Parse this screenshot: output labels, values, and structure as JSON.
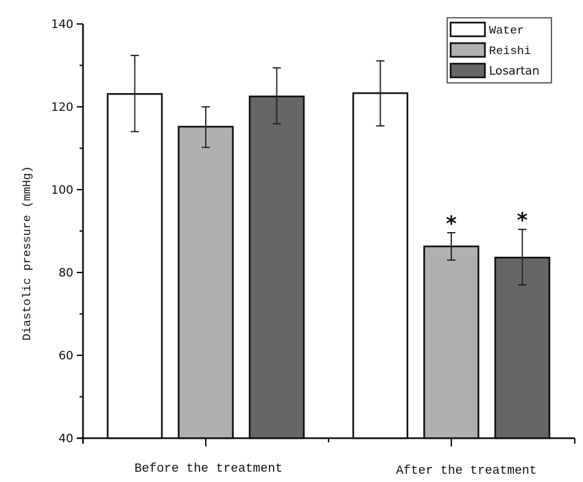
{
  "chart_data": {
    "type": "bar",
    "title": "",
    "xlabel": "",
    "ylabel": "Diastolic pressure (mmHg)",
    "ylim": [
      40,
      140
    ],
    "yticks": [
      40,
      60,
      80,
      100,
      120,
      140
    ],
    "grid": false,
    "legend_position": "top-right",
    "categories": [
      "Before the treatment",
      "After the treatment"
    ],
    "series": [
      {
        "name": "Water",
        "color": "#ffffff",
        "values": [
          123.1,
          123.3
        ],
        "error_low": [
          114.0,
          115.4
        ],
        "error_high": [
          132.4,
          131.1
        ],
        "significance": [
          "",
          ""
        ]
      },
      {
        "name": "Reishi",
        "color": "#b0b0b0",
        "values": [
          115.2,
          86.3
        ],
        "error_low": [
          110.2,
          83.0
        ],
        "error_high": [
          120.0,
          89.6
        ],
        "significance": [
          "",
          "*"
        ]
      },
      {
        "name": "Losartan",
        "color": "#666666",
        "values": [
          122.5,
          83.6
        ],
        "error_low": [
          115.9,
          77.0
        ],
        "error_high": [
          129.4,
          90.4
        ],
        "significance": [
          "",
          "*"
        ]
      }
    ]
  }
}
